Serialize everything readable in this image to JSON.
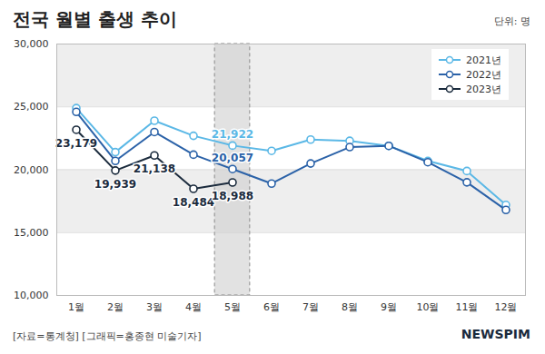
{
  "chart_data": {
    "type": "line",
    "title": "전국 월별 출생 추이",
    "unit": "단위: 명",
    "source": "[자료=통계청] [그래픽=홍종현 미술기자]",
    "logo": "NEWSPIM",
    "categories": [
      "1월",
      "2월",
      "3월",
      "4월",
      "5월",
      "6월",
      "7월",
      "8월",
      "9월",
      "10월",
      "11월",
      "12월"
    ],
    "highlight": "5월",
    "series": [
      {
        "name": "2021년",
        "color": "#5bb8e6",
        "marker": "circle",
        "values": [
          24900,
          21400,
          23900,
          22700,
          21922,
          21500,
          22400,
          22300,
          21900,
          20700,
          19900,
          17200
        ],
        "value_labels": [
          null,
          null,
          null,
          null,
          "21,922",
          null,
          null,
          null,
          null,
          null,
          null,
          null
        ]
      },
      {
        "name": "2022년",
        "color": "#2b62a8",
        "marker": "circle",
        "values": [
          24600,
          20700,
          23000,
          21200,
          20057,
          18900,
          20500,
          21800,
          21900,
          20600,
          19000,
          16800
        ],
        "value_labels": [
          null,
          null,
          null,
          null,
          "20,057",
          null,
          null,
          null,
          null,
          null,
          null,
          null
        ]
      },
      {
        "name": "2023년",
        "color": "#1b2b3d",
        "marker": "circle",
        "values": [
          23179,
          19939,
          21138,
          18484,
          18988,
          null,
          null,
          null,
          null,
          null,
          null,
          null
        ],
        "value_labels": [
          "23,179",
          "19,939",
          "21,138",
          "18,484",
          "18,988",
          null,
          null,
          null,
          null,
          null,
          null,
          null
        ]
      }
    ],
    "ylim": [
      10000,
      30000
    ],
    "yticks": [
      {
        "value": 10000,
        "label": "10,000"
      },
      {
        "value": 15000,
        "label": "15,000"
      },
      {
        "value": 20000,
        "label": "20,000"
      },
      {
        "value": 25000,
        "label": "25,000"
      },
      {
        "value": 30000,
        "label": "30,000"
      }
    ],
    "grid": true,
    "data_labels": true,
    "legend": "top-right"
  }
}
